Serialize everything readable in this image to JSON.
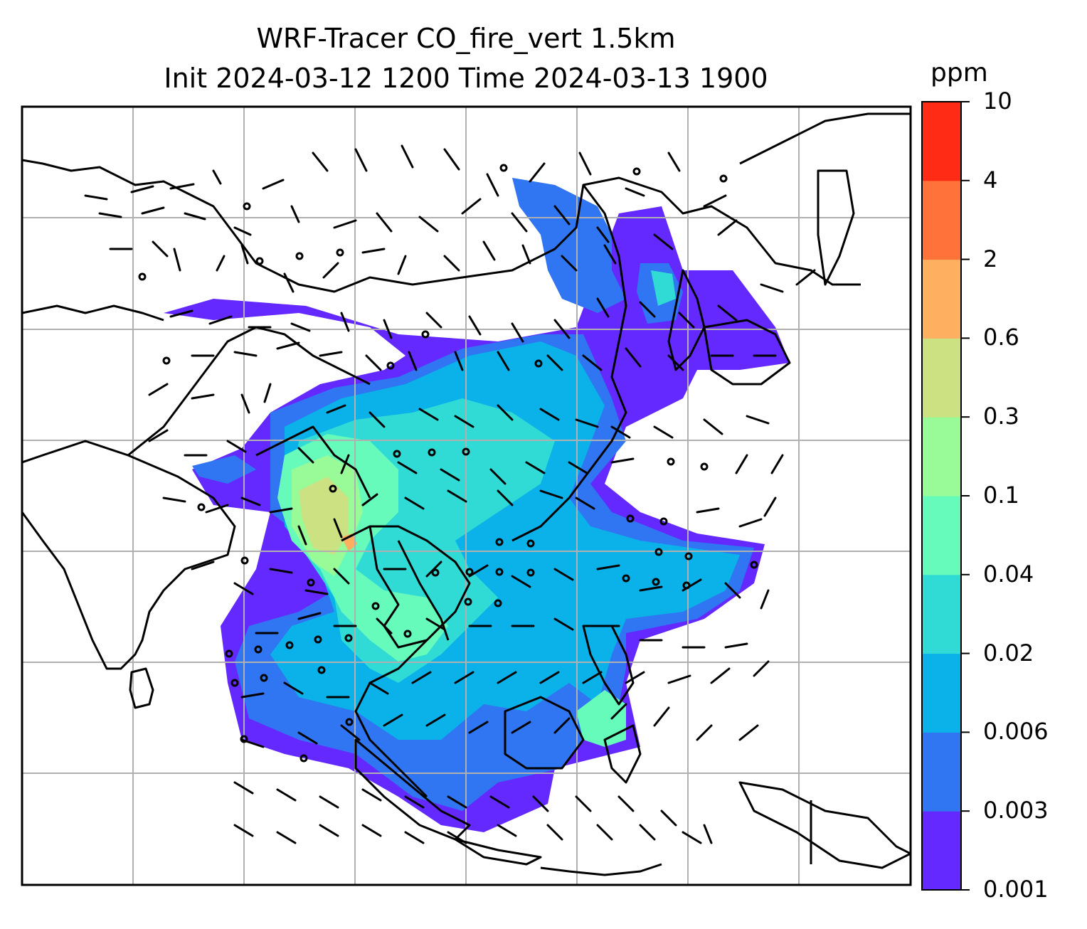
{
  "title": {
    "line1": "WRF-Tracer CO_fire_vert 1.5km",
    "line2": "Init 2024-03-12 1200 Time 2024-03-13 1900"
  },
  "colorbar": {
    "unit": "ppm",
    "levels": [
      "0.001",
      "0.003",
      "0.006",
      "0.02",
      "0.04",
      "0.1",
      "0.3",
      "0.6",
      "2",
      "4",
      "10"
    ],
    "colors": [
      "#6429ff",
      "#3075f1",
      "#0ab2e9",
      "#31dbd5",
      "#66fabb",
      "#98fb98",
      "#cce182",
      "#ffaf60",
      "#ff7239",
      "#ff2b15"
    ]
  },
  "map": {
    "gridlines": true,
    "wind_barbs": true,
    "coastlines": true,
    "borders": true
  }
}
